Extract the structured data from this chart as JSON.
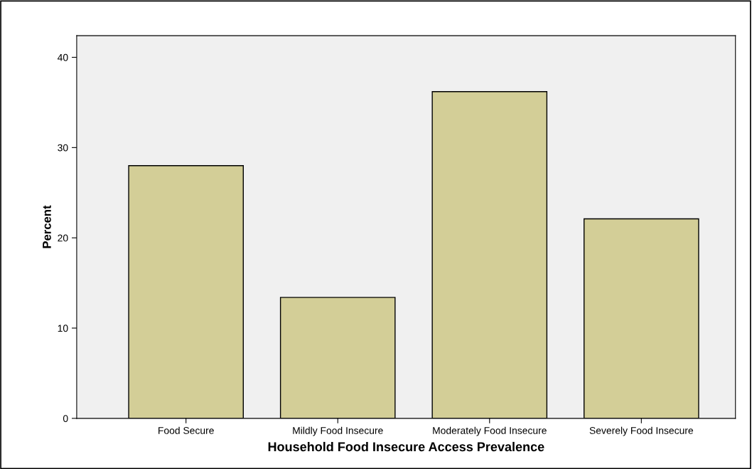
{
  "chart_data": {
    "type": "bar",
    "xlabel": "Household Food Insecure Access Prevalence",
    "ylabel": "Percent",
    "categories": [
      "Food Secure",
      "Mildly Food Insecure",
      "Moderately Food Insecure",
      "Severely Food Insecure"
    ],
    "values": [
      28.0,
      13.4,
      36.2,
      22.1
    ],
    "color": "#d3ce97",
    "ylim": [
      0,
      42.4
    ],
    "yticks": [
      0,
      10,
      20,
      30,
      40
    ],
    "grid": false
  }
}
